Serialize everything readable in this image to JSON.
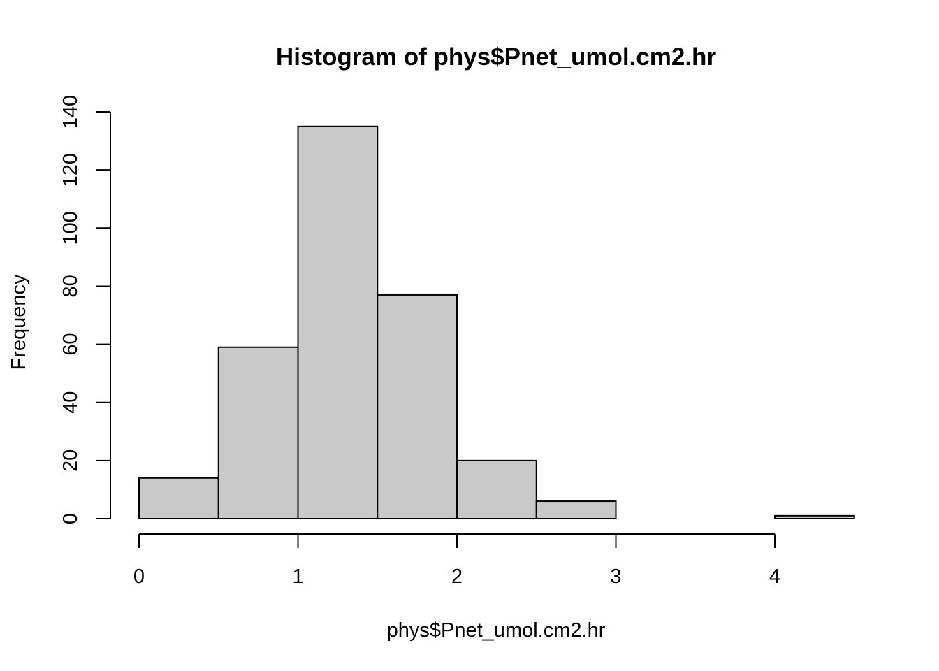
{
  "chart_data": {
    "type": "bar",
    "title": "Histogram of phys$Pnet_umol.cm2.hr",
    "xlabel": "phys$Pnet_umol.cm2.hr",
    "ylabel": "Frequency",
    "bins": [
      {
        "start": 0.0,
        "end": 0.5,
        "count": 14
      },
      {
        "start": 0.5,
        "end": 1.0,
        "count": 59
      },
      {
        "start": 1.0,
        "end": 1.5,
        "count": 135
      },
      {
        "start": 1.5,
        "end": 2.0,
        "count": 77
      },
      {
        "start": 2.0,
        "end": 2.5,
        "count": 20
      },
      {
        "start": 2.5,
        "end": 3.0,
        "count": 6
      },
      {
        "start": 3.0,
        "end": 3.5,
        "count": 0
      },
      {
        "start": 3.5,
        "end": 4.0,
        "count": 0
      },
      {
        "start": 4.0,
        "end": 4.5,
        "count": 1
      }
    ],
    "xlim": [
      0,
      4.5
    ],
    "ylim": [
      0,
      140
    ],
    "x_ticks": [
      "0",
      "1",
      "2",
      "3",
      "4"
    ],
    "y_ticks": [
      "0",
      "20",
      "40",
      "60",
      "80",
      "100",
      "120",
      "140"
    ],
    "bar_color": "#c9c9c9",
    "grid": false,
    "legend": "none"
  }
}
